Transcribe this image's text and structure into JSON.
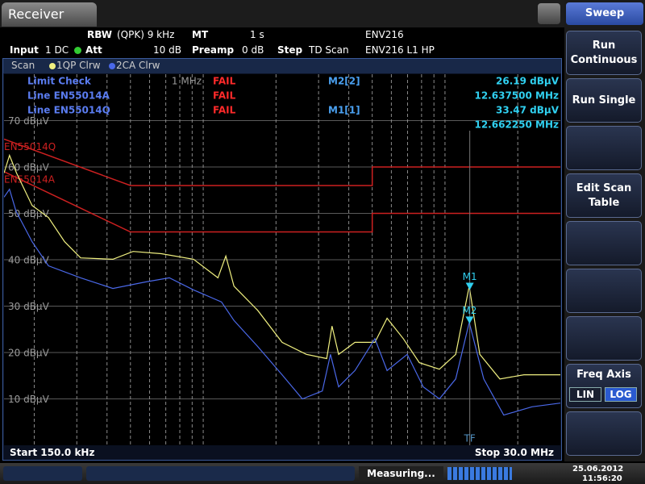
{
  "header": {
    "title": "Receiver",
    "settings": [
      {
        "label": "RBW",
        "value": "(QPK) 9 kHz"
      },
      {
        "label": "MT",
        "value": "1 s"
      },
      {
        "label": "Input",
        "value": "1 DC"
      },
      {
        "label": "Att",
        "value": "10 dB"
      },
      {
        "label": "Preamp",
        "value": "0 dB"
      },
      {
        "label": "Step",
        "value": "TD Scan"
      }
    ],
    "transducers": [
      "ENV216",
      "ENV216 L1 HP"
    ]
  },
  "trace_bar": {
    "title": "Scan"
  },
  "limit_check": {
    "title": "Limit Check",
    "result": "FAIL",
    "lines": [
      {
        "name": "Line EN55014A",
        "result": "FAIL"
      },
      {
        "name": "Line EN55014Q",
        "result": "FAIL"
      }
    ]
  },
  "chart_data": {
    "type": "line",
    "x_scale": "log",
    "grid": true,
    "xlim": [
      0.15,
      30
    ],
    "ylim": [
      0,
      80
    ],
    "xticks": [
      {
        "value": 1,
        "label": "1 MHz"
      }
    ],
    "xgrid": [
      0.2,
      0.3,
      0.4,
      0.5,
      0.6,
      0.7,
      0.8,
      0.9,
      1,
      2,
      3,
      4,
      5,
      6,
      7,
      8,
      9,
      10,
      20
    ],
    "yticks": [
      {
        "value": 10,
        "label": "10 dBµV"
      },
      {
        "value": 20,
        "label": "20 dBµV"
      },
      {
        "value": 30,
        "label": "30 dBµV"
      },
      {
        "value": 40,
        "label": "40 dBµV"
      },
      {
        "value": 50,
        "label": "50 dBµV"
      },
      {
        "value": 60,
        "label": "60 dBµV"
      },
      {
        "value": 70,
        "label": "70 dBµV"
      }
    ],
    "start_label": "Start 150.0 kHz",
    "stop_label": "Stop 30.0 MHz",
    "tf_label": "TF",
    "series": [
      {
        "name": "1QP Clrw",
        "color": "#f0f080",
        "x": [
          0.15,
          0.158,
          0.169,
          0.196,
          0.229,
          0.267,
          0.311,
          0.423,
          0.513,
          0.671,
          0.912,
          1.15,
          1.24,
          1.34,
          1.68,
          2.12,
          2.67,
          3.24,
          3.41,
          3.63,
          4.24,
          5.13,
          5.76,
          6.72,
          7.83,
          9.48,
          11.07,
          12.6,
          13.93,
          16.87,
          21.2,
          30
        ],
        "values": [
          58.7,
          62.5,
          58.7,
          51.7,
          49.1,
          43.9,
          40.4,
          40.1,
          41.8,
          41.3,
          40.1,
          36.1,
          40.8,
          34.3,
          29.1,
          22.2,
          19.6,
          18.7,
          25.7,
          19.6,
          22.2,
          22.2,
          27.4,
          23.0,
          17.8,
          16.4,
          19.6,
          34.3,
          19.6,
          14.3,
          15.2,
          15.2
        ]
      },
      {
        "name": "2CA Clrw",
        "color": "#4a68e8",
        "x": [
          0.15,
          0.158,
          0.168,
          0.196,
          0.229,
          0.311,
          0.423,
          0.575,
          0.724,
          0.912,
          1.19,
          1.34,
          1.68,
          2.12,
          2.57,
          3.11,
          3.36,
          3.63,
          4.24,
          5.13,
          5.76,
          6.98,
          8.13,
          9.48,
          11.07,
          12.6,
          14.46,
          17.5,
          22.9,
          30
        ],
        "values": [
          53.5,
          55.2,
          50.5,
          43.9,
          38.7,
          36.1,
          33.8,
          35.2,
          36.1,
          33.5,
          30.9,
          26.9,
          21.3,
          15.2,
          10.0,
          11.7,
          19.6,
          12.6,
          16.1,
          23.0,
          16.1,
          19.6,
          12.6,
          10.0,
          14.3,
          26.5,
          14.3,
          6.5,
          8.3,
          9.1
        ]
      }
    ],
    "limit_lines": [
      {
        "name": "EN55014Q",
        "color": "#cc2020",
        "x": [
          0.15,
          0.5,
          5,
          5,
          30
        ],
        "values": [
          66,
          56,
          56,
          60,
          60
        ]
      },
      {
        "name": "EN55014A",
        "color": "#cc2020",
        "x": [
          0.15,
          0.5,
          5,
          5,
          30
        ],
        "values": [
          59,
          46,
          46,
          50,
          50
        ]
      }
    ],
    "markers": [
      {
        "name": "M2[2]",
        "short": "M2",
        "x": 12.6375,
        "value": 26.19,
        "value_label": "26.19 dBµV",
        "x_label": "12.637500 MHz"
      },
      {
        "name": "M1[1]",
        "short": "M1",
        "x": 12.66225,
        "value": 33.47,
        "value_label": "33.47 dBµV",
        "x_label": "12.662250 MHz"
      }
    ]
  },
  "softkeys": {
    "title": "Sweep",
    "buttons": [
      "Run Continuous",
      "Run Single",
      "Edit Scan Table"
    ],
    "freq_axis": {
      "title": "Freq Axis",
      "options": [
        "LIN",
        "LOG"
      ],
      "selected": "LOG"
    }
  },
  "status": {
    "message": "Measuring...",
    "date": "25.06.2012",
    "time": "11:56:20"
  }
}
